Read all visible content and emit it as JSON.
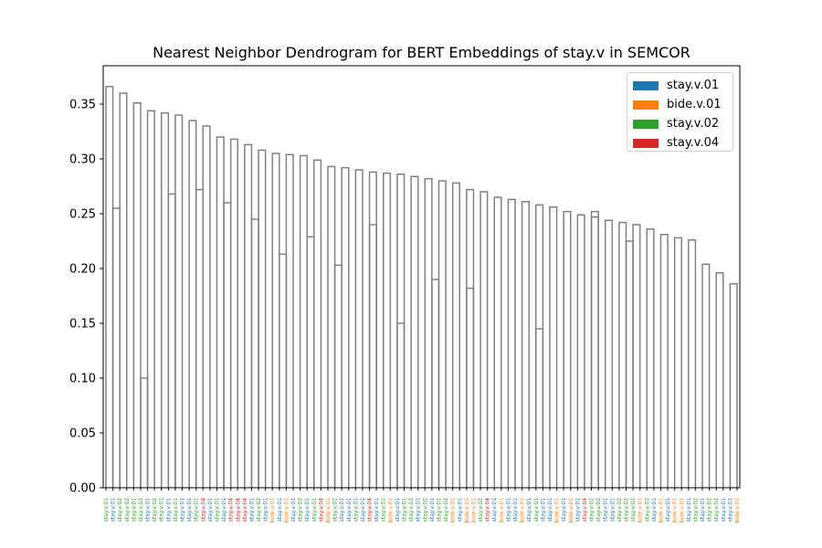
{
  "chart_data": {
    "type": "dendrogram",
    "title": "Nearest Neighbor Dendrogram for BERT Embeddings of stay.v in SEMCOR",
    "ylim": [
      0,
      0.385
    ],
    "y_ticks": [
      "0.00",
      "0.05",
      "0.10",
      "0.15",
      "0.20",
      "0.25",
      "0.30",
      "0.35"
    ],
    "link_color": "#808080",
    "grid": false,
    "legend_position": "top-right",
    "legend": [
      {
        "label": "stay.v.01",
        "color": "#1f77b4"
      },
      {
        "label": "bide.v.01",
        "color": "#ff7f0e"
      },
      {
        "label": "stay.v.02",
        "color": "#2ca02c"
      },
      {
        "label": "stay.v.04",
        "color": "#d62728"
      }
    ],
    "leaves": [
      {
        "label": "stay.v.01",
        "sense": "stay.v.02"
      },
      {
        "label": "stay.v.01",
        "sense": "stay.v.01"
      },
      {
        "label": "stay.v.02",
        "sense": "stay.v.02"
      },
      {
        "label": "stay.v.02",
        "sense": "stay.v.02"
      },
      {
        "label": "stay.v.01",
        "sense": "stay.v.02"
      },
      {
        "label": "stay.v.02",
        "sense": "stay.v.02"
      },
      {
        "label": "stay.v.01",
        "sense": "stay.v.01"
      },
      {
        "label": "stay.v.02",
        "sense": "stay.v.02"
      },
      {
        "label": "stay.v.01",
        "sense": "stay.v.02"
      },
      {
        "label": "stay.v.01",
        "sense": "stay.v.01"
      },
      {
        "label": "stay.v.01",
        "sense": "stay.v.02"
      },
      {
        "label": "stay.v.01",
        "sense": "stay.v.01"
      },
      {
        "label": "stay.v.01",
        "sense": "stay.v.01"
      },
      {
        "label": "stay.v.01",
        "sense": "stay.v.02"
      },
      {
        "label": "stay.v.04",
        "sense": "stay.v.04"
      },
      {
        "label": "stay.v.01",
        "sense": "stay.v.01"
      },
      {
        "label": "stay.v.01",
        "sense": "stay.v.02"
      },
      {
        "label": "stay.v.01",
        "sense": "stay.v.01"
      },
      {
        "label": "stay.v.04",
        "sense": "stay.v.04"
      },
      {
        "label": "stay.v.04",
        "sense": "stay.v.04"
      },
      {
        "label": "stay.v.04",
        "sense": "stay.v.04"
      },
      {
        "label": "stay.v.01",
        "sense": "stay.v.01"
      },
      {
        "label": "stay.v.02",
        "sense": "stay.v.02"
      },
      {
        "label": "stay.v.01",
        "sense": "stay.v.01"
      },
      {
        "label": "bide.v.01",
        "sense": "bide.v.01"
      },
      {
        "label": "stay.v.01",
        "sense": "stay.v.01"
      },
      {
        "label": "bide.v.01",
        "sense": "bide.v.01"
      },
      {
        "label": "stay.v.01",
        "sense": "stay.v.01"
      },
      {
        "label": "stay.v.02",
        "sense": "stay.v.02"
      },
      {
        "label": "stay.v.01",
        "sense": "stay.v.01"
      },
      {
        "label": "stay.v.01",
        "sense": "stay.v.02"
      },
      {
        "label": "stay.v.04",
        "sense": "stay.v.04"
      },
      {
        "label": "bide.v.01",
        "sense": "bide.v.01"
      },
      {
        "label": "stay.v.02",
        "sense": "stay.v.02"
      },
      {
        "label": "stay.v.01",
        "sense": "stay.v.01"
      },
      {
        "label": "stay.v.01",
        "sense": "stay.v.01"
      },
      {
        "label": "stay.v.01",
        "sense": "stay.v.02"
      },
      {
        "label": "stay.v.01",
        "sense": "stay.v.01"
      },
      {
        "label": "stay.v.04",
        "sense": "stay.v.04"
      },
      {
        "label": "stay.v.01",
        "sense": "stay.v.01"
      },
      {
        "label": "stay.v.01",
        "sense": "stay.v.02"
      },
      {
        "label": "bide.v.01",
        "sense": "bide.v.01"
      },
      {
        "label": "stay.v.01",
        "sense": "stay.v.01"
      },
      {
        "label": "stay.v.01",
        "sense": "stay.v.02"
      },
      {
        "label": "stay.v.02",
        "sense": "stay.v.02"
      },
      {
        "label": "stay.v.01",
        "sense": "stay.v.01"
      },
      {
        "label": "stay.v.02",
        "sense": "stay.v.02"
      },
      {
        "label": "stay.v.01",
        "sense": "stay.v.01"
      },
      {
        "label": "stay.v.02",
        "sense": "stay.v.02"
      },
      {
        "label": "stay.v.02",
        "sense": "stay.v.02"
      },
      {
        "label": "bide.v.01",
        "sense": "bide.v.01"
      },
      {
        "label": "stay.v.01",
        "sense": "stay.v.01"
      },
      {
        "label": "bide.v.01",
        "sense": "bide.v.01"
      },
      {
        "label": "bide.v.01",
        "sense": "bide.v.01"
      },
      {
        "label": "stay.v.02",
        "sense": "stay.v.02"
      },
      {
        "label": "stay.v.04",
        "sense": "stay.v.04"
      },
      {
        "label": "stay.v.01",
        "sense": "stay.v.01"
      },
      {
        "label": "bide.v.01",
        "sense": "bide.v.01"
      },
      {
        "label": "stay.v.01",
        "sense": "stay.v.01"
      },
      {
        "label": "stay.v.01",
        "sense": "stay.v.01"
      },
      {
        "label": "bide.v.01",
        "sense": "bide.v.01"
      },
      {
        "label": "stay.v.01",
        "sense": "stay.v.01"
      },
      {
        "label": "stay.v.01",
        "sense": "stay.v.02"
      },
      {
        "label": "stay.v.01",
        "sense": "stay.v.01"
      },
      {
        "label": "stay.v.01",
        "sense": "stay.v.01"
      },
      {
        "label": "bide.v.01",
        "sense": "bide.v.01"
      },
      {
        "label": "stay.v.01",
        "sense": "stay.v.01"
      },
      {
        "label": "bide.v.01",
        "sense": "bide.v.01"
      },
      {
        "label": "stay.v.01",
        "sense": "stay.v.01"
      },
      {
        "label": "stay.v.04",
        "sense": "stay.v.04"
      },
      {
        "label": "stay.v.02",
        "sense": "stay.v.02"
      },
      {
        "label": "stay.v.02",
        "sense": "stay.v.02"
      },
      {
        "label": "stay.v.01",
        "sense": "stay.v.01"
      },
      {
        "label": "stay.v.01",
        "sense": "stay.v.01"
      },
      {
        "label": "stay.v.02",
        "sense": "stay.v.02"
      },
      {
        "label": "stay.v.02",
        "sense": "stay.v.02"
      },
      {
        "label": "stay.v.02",
        "sense": "stay.v.02"
      },
      {
        "label": "bide.v.01",
        "sense": "bide.v.01"
      },
      {
        "label": "stay.v.02",
        "sense": "stay.v.02"
      },
      {
        "label": "stay.v.01",
        "sense": "stay.v.01"
      },
      {
        "label": "bide.v.01",
        "sense": "bide.v.01"
      },
      {
        "label": "stay.v.01",
        "sense": "stay.v.01"
      },
      {
        "label": "bide.v.01",
        "sense": "bide.v.01"
      },
      {
        "label": "bide.v.01",
        "sense": "bide.v.01"
      },
      {
        "label": "stay.v.01",
        "sense": "stay.v.01"
      },
      {
        "label": "stay.v.02",
        "sense": "stay.v.02"
      },
      {
        "label": "stay.v.01",
        "sense": "stay.v.01"
      },
      {
        "label": "stay.v.02",
        "sense": "stay.v.02"
      },
      {
        "label": "stay.v.02",
        "sense": "stay.v.02"
      },
      {
        "label": "stay.v.01",
        "sense": "stay.v.01"
      },
      {
        "label": "stay.v.01",
        "sense": "stay.v.01"
      },
      {
        "label": "bide.v.01",
        "sense": "bide.v.01"
      }
    ],
    "merges": [
      [
        0,
        1,
        0.366
      ],
      [
        2,
        3,
        0.36
      ],
      [
        4,
        5,
        0.351
      ],
      [
        6,
        7,
        0.344
      ],
      [
        8,
        9,
        0.342
      ],
      [
        10,
        11,
        0.34
      ],
      [
        12,
        13,
        0.335
      ],
      [
        14,
        15,
        0.33
      ],
      [
        16,
        17,
        0.32
      ],
      [
        18,
        19,
        0.318
      ],
      [
        20,
        21,
        0.313
      ],
      [
        22,
        23,
        0.308
      ],
      [
        24,
        25,
        0.305
      ],
      [
        26,
        27,
        0.304
      ],
      [
        28,
        29,
        0.303
      ],
      [
        30,
        31,
        0.299
      ],
      [
        32,
        33,
        0.293
      ],
      [
        34,
        35,
        0.292
      ],
      [
        36,
        37,
        0.29
      ],
      [
        38,
        39,
        0.288
      ],
      [
        40,
        41,
        0.287
      ],
      [
        42,
        43,
        0.286
      ],
      [
        44,
        45,
        0.284
      ],
      [
        46,
        47,
        0.282
      ],
      [
        48,
        49,
        0.28
      ],
      [
        50,
        51,
        0.278
      ],
      [
        52,
        53,
        0.272
      ],
      [
        54,
        55,
        0.27
      ],
      [
        56,
        57,
        0.265
      ],
      [
        58,
        59,
        0.263
      ],
      [
        60,
        61,
        0.261
      ],
      [
        62,
        63,
        0.258
      ],
      [
        64,
        65,
        0.256
      ],
      [
        66,
        67,
        0.252
      ],
      [
        68,
        69,
        0.249
      ],
      [
        70,
        71,
        0.247
      ],
      [
        72,
        73,
        0.244
      ],
      [
        74,
        75,
        0.242
      ],
      [
        76,
        77,
        0.24
      ],
      [
        78,
        79,
        0.236
      ],
      [
        80,
        81,
        0.231
      ],
      [
        82,
        83,
        0.228
      ],
      [
        84,
        85,
        0.226
      ],
      [
        86,
        87,
        0.204
      ],
      [
        88,
        89,
        0.196
      ],
      [
        90,
        91,
        0.186
      ],
      [
        1,
        2,
        0.255
      ],
      [
        5,
        6,
        0.1
      ],
      [
        9,
        10,
        0.268
      ],
      [
        13,
        14,
        0.272
      ],
      [
        17,
        18,
        0.26
      ],
      [
        21,
        22,
        0.245
      ],
      [
        25,
        26,
        0.213
      ],
      [
        29,
        30,
        0.229
      ],
      [
        33,
        34,
        0.203
      ],
      [
        38,
        39,
        0.24
      ],
      [
        42,
        43,
        0.15
      ],
      [
        47,
        48,
        0.19
      ],
      [
        52,
        53,
        0.182
      ],
      [
        62,
        63,
        0.145
      ],
      [
        70,
        71,
        0.252
      ],
      [
        75,
        76,
        0.225
      ]
    ]
  }
}
